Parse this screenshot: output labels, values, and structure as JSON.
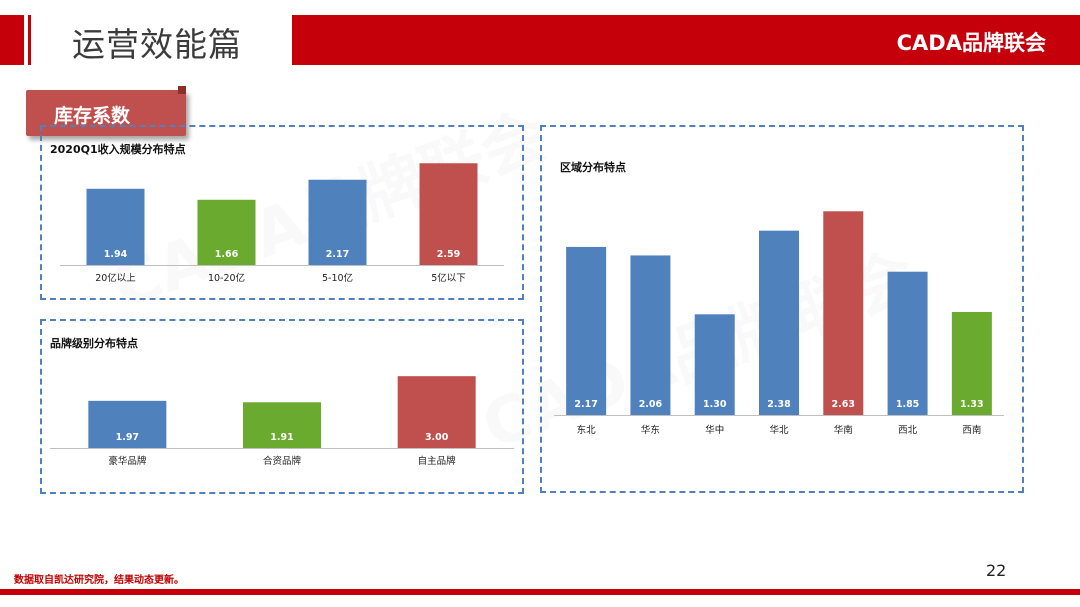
{
  "header": {
    "title": "运营效能篇",
    "brand": "CADA品牌联会"
  },
  "section_tag": "库存系数",
  "watermark": "CADA品牌联会",
  "footer": {
    "note": "数据取自凯达研究院，结果动态更新。",
    "page": "22"
  },
  "colors": {
    "blue": "#4f81bd",
    "green": "#6aaa2e",
    "red": "#c0504d",
    "accent": "#c5000b"
  },
  "chart_data": [
    {
      "type": "bar",
      "title": "2020Q1收入规模分布特点",
      "categories": [
        "20亿以上",
        "10-20亿",
        "5-10亿",
        "5亿以下"
      ],
      "values": [
        1.94,
        1.66,
        2.17,
        2.59
      ],
      "bar_colors": [
        "blue",
        "green",
        "blue",
        "red"
      ],
      "labels": [
        "1.94",
        "1.66",
        "2.17",
        "2.59"
      ],
      "ylim": [
        0,
        2.8
      ]
    },
    {
      "type": "bar",
      "title": "品牌级别分布特点",
      "categories": [
        "豪华品牌",
        "合资品牌",
        "自主品牌"
      ],
      "values": [
        1.97,
        1.91,
        3.0
      ],
      "bar_colors": [
        "blue",
        "green",
        "red"
      ],
      "labels": [
        "1.97",
        "1.91",
        "3.00"
      ],
      "ylim": [
        0,
        3.3
      ]
    },
    {
      "type": "bar",
      "title": "区域分布特点",
      "categories": [
        "东北",
        "华东",
        "华中",
        "华北",
        "华南",
        "西北",
        "西南"
      ],
      "values": [
        2.17,
        2.06,
        1.3,
        2.38,
        2.63,
        1.85,
        1.33
      ],
      "bar_colors": [
        "blue",
        "blue",
        "blue",
        "blue",
        "red",
        "blue",
        "green"
      ],
      "labels": [
        "2.17",
        "2.06",
        "1.30",
        "2.38",
        "2.63",
        "1.85",
        "1.33"
      ],
      "ylim": [
        0,
        2.75
      ]
    }
  ]
}
